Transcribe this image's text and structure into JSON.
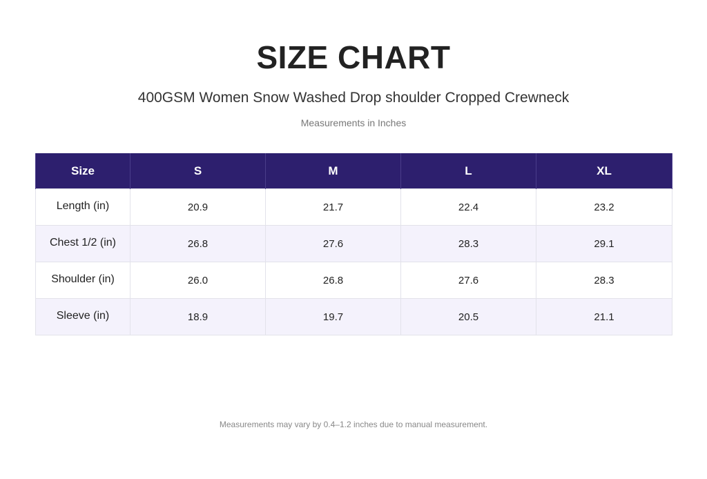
{
  "title": "SIZE CHART",
  "subtitle": "400GSM Women Snow Washed Drop shoulder Cropped Crewneck",
  "units_note": "Measurements in Inches",
  "table": {
    "headers": [
      "Size",
      "S",
      "M",
      "L",
      "XL"
    ],
    "rows": [
      {
        "label": "Length (in)",
        "values": [
          "20.9",
          "21.7",
          "22.4",
          "23.2"
        ]
      },
      {
        "label": "Chest 1/2 (in)",
        "values": [
          "26.8",
          "27.6",
          "28.3",
          "29.1"
        ]
      },
      {
        "label": "Shoulder (in)",
        "values": [
          "26.0",
          "26.8",
          "27.6",
          "28.3"
        ]
      },
      {
        "label": "Sleeve (in)",
        "values": [
          "18.9",
          "19.7",
          "20.5",
          "21.1"
        ]
      }
    ]
  },
  "footnote": "Measurements may vary by 0.4–1.2 inches due to manual measurement.",
  "colors": {
    "header_bg": "#2d1f6e",
    "header_text": "#ffffff",
    "alt_row_bg": "#f4f2fc"
  }
}
